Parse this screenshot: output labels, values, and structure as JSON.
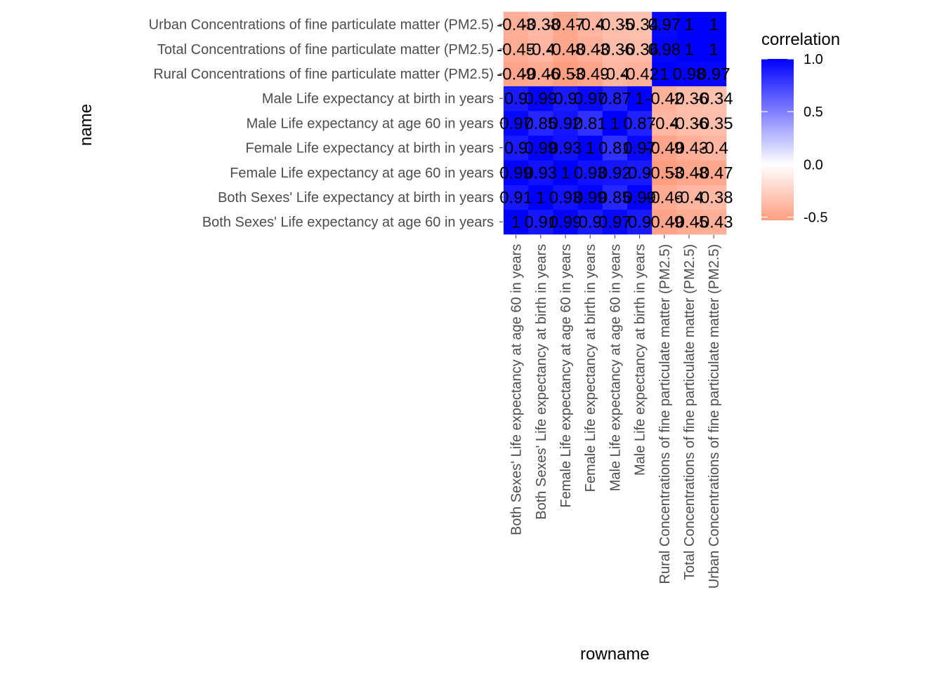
{
  "chart_data": {
    "type": "heatmap",
    "xlabel": "rowname",
    "ylabel": "name",
    "x_categories": [
      "Both Sexes' Life expectancy at age 60 in years",
      "Both Sexes' Life expectancy at birth in years",
      "Female Life expectancy at age 60 in years",
      "Female Life expectancy at birth in years",
      "Male Life expectancy at age 60 in years",
      "Male Life expectancy at birth in years",
      "Rural Concentrations of fine particulate matter (PM2.5)",
      "Total Concentrations of fine particulate matter (PM2.5)",
      "Urban Concentrations of fine particulate matter (PM2.5)"
    ],
    "y_categories": [
      "Both Sexes' Life expectancy at age 60 in years",
      "Both Sexes' Life expectancy at birth in years",
      "Female Life expectancy at age 60 in years",
      "Female Life expectancy at birth in years",
      "Male Life expectancy at age 60 in years",
      "Male Life expectancy at birth in years",
      "Rural Concentrations of fine particulate matter (PM2.5)",
      "Total Concentrations of fine particulate matter (PM2.5)",
      "Urban Concentrations of fine particulate matter (PM2.5)"
    ],
    "values": [
      [
        1,
        0.91,
        0.99,
        0.9,
        0.97,
        0.9,
        -0.49,
        -0.45,
        -0.43
      ],
      [
        0.91,
        1,
        0.93,
        0.99,
        0.85,
        0.99,
        -0.46,
        -0.4,
        -0.38
      ],
      [
        0.99,
        0.93,
        1,
        0.93,
        0.92,
        0.9,
        -0.53,
        -0.48,
        -0.47
      ],
      [
        0.9,
        0.99,
        0.93,
        1,
        0.81,
        0.97,
        -0.49,
        -0.43,
        -0.4
      ],
      [
        0.97,
        0.85,
        0.92,
        0.81,
        1,
        0.87,
        -0.4,
        -0.36,
        -0.35
      ],
      [
        0.9,
        0.99,
        0.9,
        0.97,
        0.87,
        1,
        -0.42,
        -0.36,
        -0.34
      ],
      [
        -0.49,
        -0.46,
        -0.53,
        -0.49,
        -0.4,
        -0.42,
        1,
        0.98,
        0.97
      ],
      [
        -0.45,
        -0.4,
        -0.48,
        -0.43,
        -0.36,
        -0.36,
        0.98,
        1,
        1
      ],
      [
        -0.43,
        -0.38,
        -0.47,
        -0.4,
        -0.35,
        -0.34,
        0.97,
        1,
        1
      ]
    ],
    "color_scale": {
      "title": "correlation",
      "low_color": "#ff9d80",
      "mid_color": "#ffffff",
      "high_color": "#0000ff",
      "midpoint": 0,
      "limits": [
        -0.53,
        1
      ],
      "breaks": [
        1.0,
        0.5,
        0.0,
        -0.5
      ],
      "break_labels": [
        "1.0",
        "0.5",
        "0.0",
        "-0.5"
      ]
    },
    "legend": "right",
    "grid": true
  }
}
